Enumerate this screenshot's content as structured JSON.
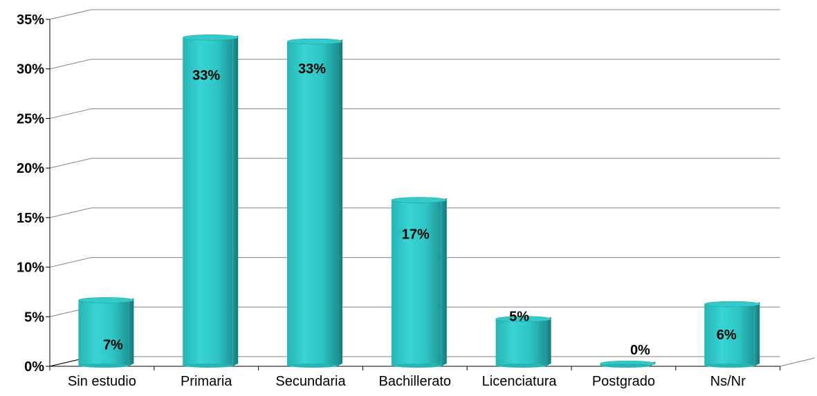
{
  "chart_data": {
    "type": "bar",
    "categories": [
      "Sin estudio",
      "Primaria",
      "Secundaria",
      "Bachillerato",
      "Licenciatura",
      "Postgrado",
      "Ns/Nr"
    ],
    "values": [
      6.6,
      33.1,
      32.7,
      16.7,
      4.7,
      0.2,
      6.2
    ],
    "data_labels": [
      "7%",
      "33%",
      "33%",
      "17%",
      "5%",
      "0%",
      "6%"
    ],
    "y_ticks": [
      "0%",
      "5%",
      "10%",
      "15%",
      "20%",
      "25%",
      "30%",
      "35%"
    ],
    "ylim": [
      0,
      35
    ],
    "grid": true,
    "bar_color": "#2ec4c4",
    "title": "",
    "xlabel": "",
    "ylabel": ""
  }
}
